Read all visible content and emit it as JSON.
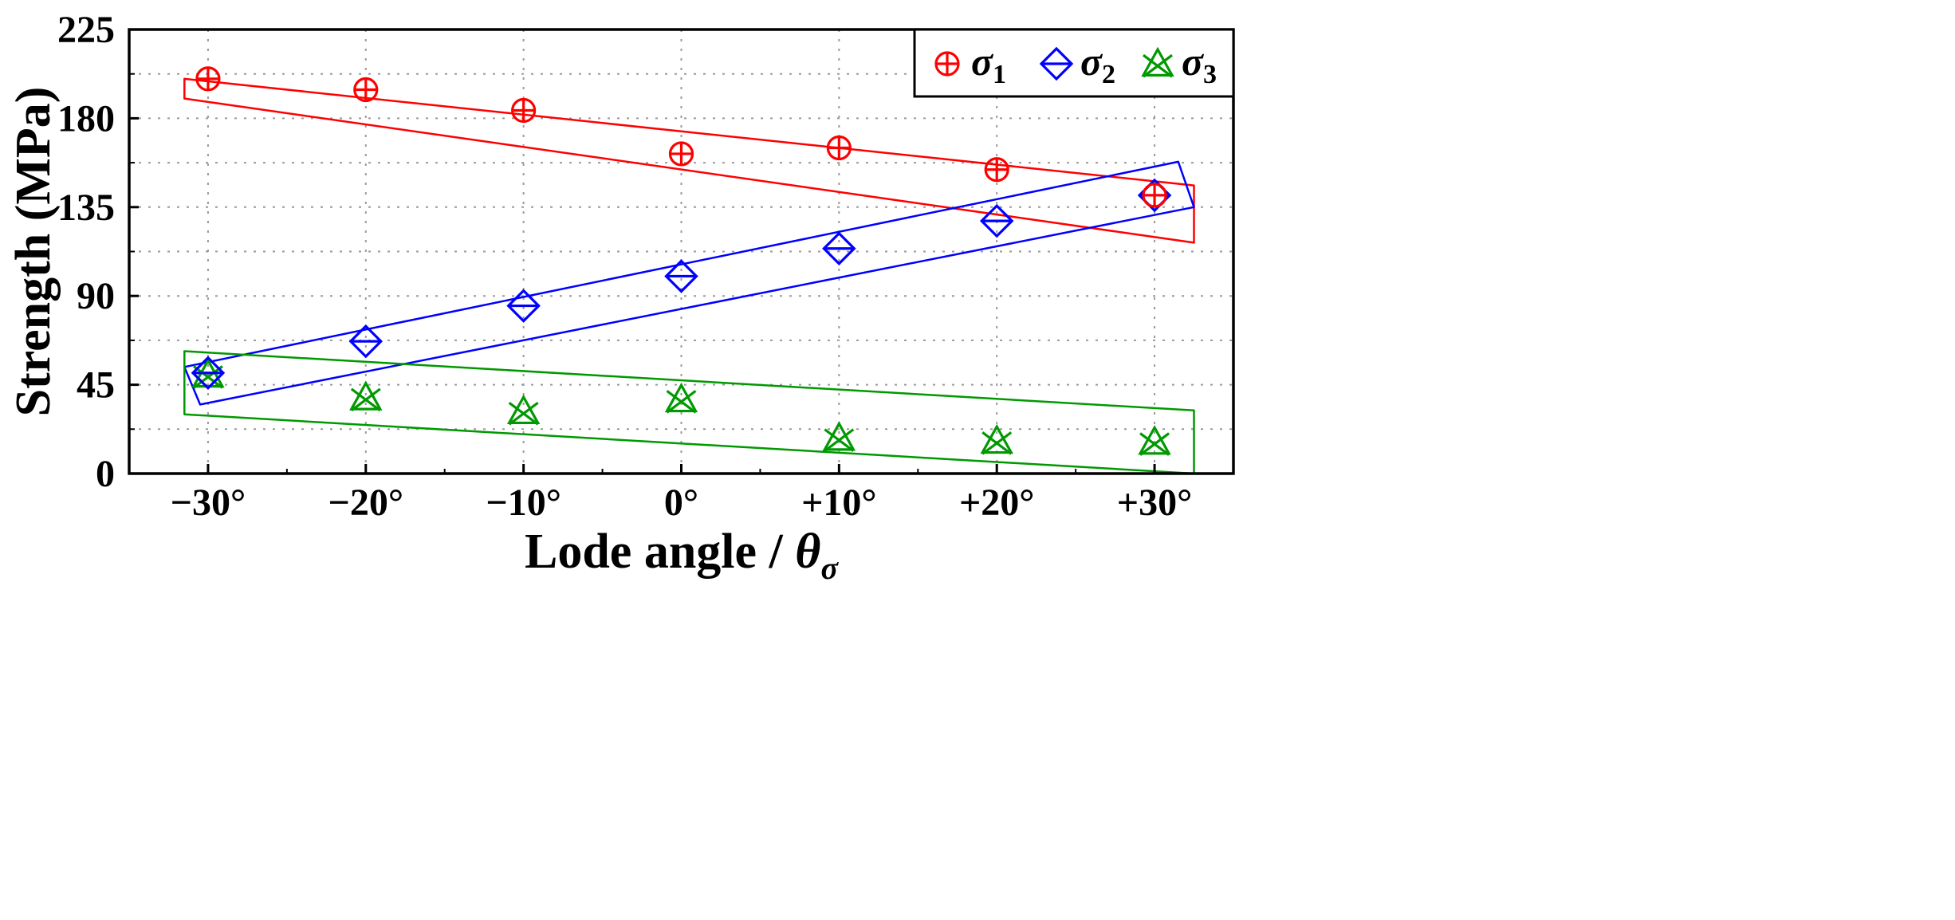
{
  "chart_data": {
    "type": "scatter",
    "title": "",
    "xlabel": "Lode angle / ",
    "xlabel_symbol": "θ",
    "xlabel_sub": "σ",
    "ylabel": "Strength (MPa)",
    "x": [
      -30,
      -20,
      -10,
      0,
      10,
      20,
      30
    ],
    "x_tick_labels": [
      "−30°",
      "−20°",
      "−10°",
      "0°",
      "+10°",
      "+20°",
      "+30°"
    ],
    "y_ticks": [
      0,
      45,
      90,
      135,
      180,
      225
    ],
    "y_tick_labels": [
      "0",
      "45",
      "90",
      "135",
      "180",
      "225"
    ],
    "xlim": [
      -35,
      35
    ],
    "ylim": [
      0,
      225
    ],
    "grid": true,
    "legend_position": "top-right",
    "series": [
      {
        "name": "σ1",
        "symbol": "σ",
        "sub": "1",
        "marker": "circle-plus",
        "color": "#ff0000",
        "values": [
          200,
          194.5,
          184,
          162,
          165,
          154,
          141
        ],
        "envelope": [
          [
            -31.5,
            200
          ],
          [
            -31.5,
            190
          ],
          [
            32.5,
            117
          ],
          [
            32.5,
            146
          ]
        ]
      },
      {
        "name": "σ2",
        "symbol": "σ",
        "sub": "2",
        "marker": "diamond-bar",
        "color": "#0000ff",
        "values": [
          51,
          67,
          85,
          100,
          114,
          128,
          141
        ],
        "envelope": [
          [
            -31.5,
            54
          ],
          [
            -30.5,
            35
          ],
          [
            32.5,
            135
          ],
          [
            31.5,
            158
          ]
        ]
      },
      {
        "name": "σ3",
        "symbol": "σ",
        "sub": "3",
        "marker": "triangle-x",
        "color": "#009900",
        "values": [
          50,
          38.5,
          31.5,
          37.5,
          18,
          16.5,
          16
        ],
        "envelope": [
          [
            -31.5,
            62
          ],
          [
            -31.5,
            30
          ],
          [
            32.5,
            0
          ],
          [
            32.5,
            32
          ]
        ]
      }
    ]
  }
}
